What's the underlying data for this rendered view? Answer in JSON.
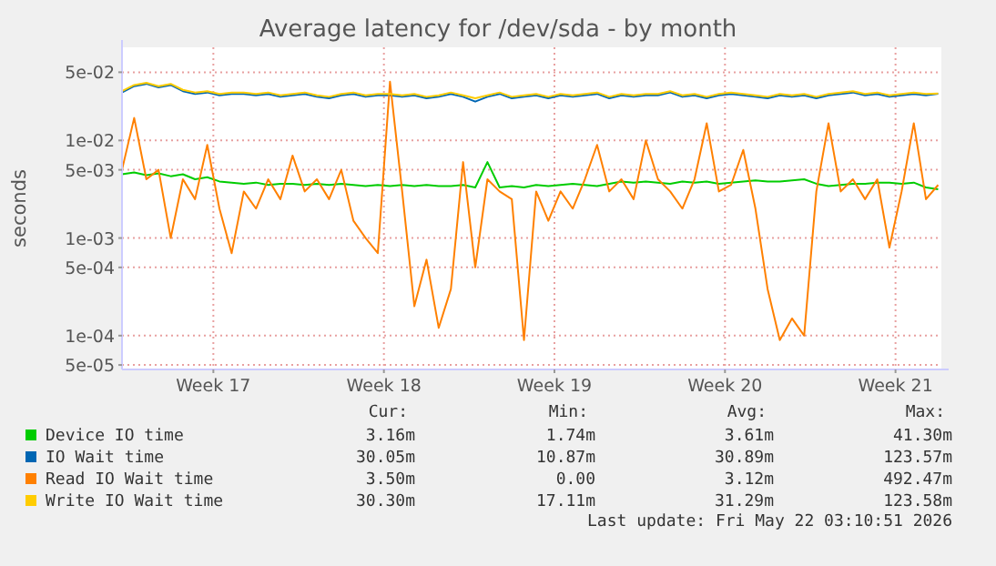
{
  "chart_data": {
    "type": "line",
    "title": "Average latency for /dev/sda - by month",
    "ylabel": "seconds",
    "log": "y",
    "grid": true,
    "legend": "bottom",
    "line_style": "solid",
    "xlim": [
      "2026-04-18T12:00",
      "2026-05-22T03:10"
    ],
    "xticks": [
      {
        "value": "2026-04-22T06:00",
        "label": "Week 17"
      },
      {
        "value": "2026-04-29T06:00",
        "label": "Week 18"
      },
      {
        "value": "2026-05-06T06:00",
        "label": "Week 19"
      },
      {
        "value": "2026-05-13T06:00",
        "label": "Week 20"
      },
      {
        "value": "2026-05-20T06:00",
        "label": "Week 21"
      }
    ],
    "ylim": [
      4.5e-05,
      0.09
    ],
    "yticks": [
      {
        "value": 5e-05,
        "label": "5e-05"
      },
      {
        "value": 0.0001,
        "label": "1e-04"
      },
      {
        "value": 0.0005,
        "label": "5e-04"
      },
      {
        "value": 0.001,
        "label": "1e-03"
      },
      {
        "value": 0.005,
        "label": "5e-03"
      },
      {
        "value": 0.01,
        "label": "1e-02"
      },
      {
        "value": 0.05,
        "label": "5e-02"
      }
    ],
    "x": [
      "2026-04-18T12:00",
      "2026-04-19T00:00",
      "2026-04-19T12:00",
      "2026-04-20T00:00",
      "2026-04-20T12:00",
      "2026-04-21T00:00",
      "2026-04-21T12:00",
      "2026-04-22T00:00",
      "2026-04-22T12:00",
      "2026-04-23T00:00",
      "2026-04-23T12:00",
      "2026-04-24T00:00",
      "2026-04-24T12:00",
      "2026-04-25T00:00",
      "2026-04-25T12:00",
      "2026-04-26T00:00",
      "2026-04-26T12:00",
      "2026-04-27T00:00",
      "2026-04-27T12:00",
      "2026-04-28T00:00",
      "2026-04-28T12:00",
      "2026-04-29T00:00",
      "2026-04-29T12:00",
      "2026-04-30T00:00",
      "2026-04-30T12:00",
      "2026-05-01T00:00",
      "2026-05-01T12:00",
      "2026-05-02T00:00",
      "2026-05-02T12:00",
      "2026-05-03T00:00",
      "2026-05-03T12:00",
      "2026-05-04T00:00",
      "2026-05-04T12:00",
      "2026-05-05T00:00",
      "2026-05-05T12:00",
      "2026-05-06T00:00",
      "2026-05-06T12:00",
      "2026-05-07T00:00",
      "2026-05-07T12:00",
      "2026-05-08T00:00",
      "2026-05-08T12:00",
      "2026-05-09T00:00",
      "2026-05-09T12:00",
      "2026-05-10T00:00",
      "2026-05-10T12:00",
      "2026-05-11T00:00",
      "2026-05-11T12:00",
      "2026-05-12T00:00",
      "2026-05-12T12:00",
      "2026-05-13T00:00",
      "2026-05-13T12:00",
      "2026-05-14T00:00",
      "2026-05-14T12:00",
      "2026-05-15T00:00",
      "2026-05-15T12:00",
      "2026-05-16T00:00",
      "2026-05-16T12:00",
      "2026-05-17T00:00",
      "2026-05-17T12:00",
      "2026-05-18T00:00",
      "2026-05-18T12:00",
      "2026-05-19T00:00",
      "2026-05-19T12:00",
      "2026-05-20T00:00",
      "2026-05-20T12:00",
      "2026-05-21T00:00",
      "2026-05-21T12:00",
      "2026-05-22T00:00"
    ],
    "series": [
      {
        "name": "Device IO time",
        "color": "#00cc00",
        "values": [
          0.0045,
          0.0047,
          0.0044,
          0.0046,
          0.0043,
          0.0045,
          0.004,
          0.0042,
          0.0038,
          0.0037,
          0.0036,
          0.0037,
          0.0035,
          0.0036,
          0.0036,
          0.0035,
          0.0036,
          0.0035,
          0.0036,
          0.0035,
          0.0034,
          0.0035,
          0.0034,
          0.0035,
          0.0034,
          0.0035,
          0.0034,
          0.0034,
          0.0035,
          0.0033,
          0.006,
          0.0033,
          0.0034,
          0.0033,
          0.0035,
          0.0034,
          0.0035,
          0.0036,
          0.0035,
          0.0034,
          0.0036,
          0.0038,
          0.0037,
          0.0038,
          0.0037,
          0.0036,
          0.0038,
          0.0037,
          0.0038,
          0.0036,
          0.0037,
          0.0038,
          0.0039,
          0.0038,
          0.0038,
          0.0039,
          0.004,
          0.0036,
          0.0034,
          0.0035,
          0.0036,
          0.0036,
          0.0037,
          0.0037,
          0.0036,
          0.0037,
          0.0033,
          0.00316
        ]
      },
      {
        "name": "IO Wait time",
        "color": "#0066b3",
        "values": [
          0.031,
          0.036,
          0.038,
          0.035,
          0.037,
          0.032,
          0.03,
          0.031,
          0.029,
          0.03,
          0.03,
          0.029,
          0.03,
          0.028,
          0.029,
          0.03,
          0.028,
          0.027,
          0.029,
          0.03,
          0.028,
          0.029,
          0.029,
          0.028,
          0.029,
          0.027,
          0.028,
          0.03,
          0.028,
          0.025,
          0.028,
          0.03,
          0.027,
          0.028,
          0.029,
          0.027,
          0.029,
          0.028,
          0.029,
          0.03,
          0.027,
          0.029,
          0.028,
          0.029,
          0.029,
          0.031,
          0.028,
          0.029,
          0.027,
          0.029,
          0.03,
          0.029,
          0.028,
          0.027,
          0.029,
          0.028,
          0.029,
          0.027,
          0.029,
          0.03,
          0.031,
          0.029,
          0.03,
          0.028,
          0.029,
          0.03,
          0.029,
          0.03005
        ]
      },
      {
        "name": "Read IO Wait time",
        "color": "#ff8000",
        "values": [
          0.005,
          0.017,
          0.004,
          0.005,
          0.001,
          0.004,
          0.0025,
          0.009,
          0.002,
          0.0007,
          0.003,
          0.002,
          0.004,
          0.0025,
          0.007,
          0.003,
          0.004,
          0.0025,
          0.005,
          0.0015,
          0.001,
          0.0007,
          0.04,
          0.003,
          0.0002,
          0.0006,
          0.00012,
          0.0003,
          0.006,
          0.0005,
          0.004,
          0.003,
          0.0025,
          9e-05,
          0.003,
          0.0015,
          0.003,
          0.002,
          0.004,
          0.009,
          0.003,
          0.004,
          0.0025,
          0.01,
          0.004,
          0.003,
          0.002,
          0.004,
          0.015,
          0.003,
          0.0035,
          0.008,
          0.002,
          0.0003,
          9e-05,
          0.00015,
          0.0001,
          0.003,
          0.015,
          0.003,
          0.004,
          0.0025,
          0.004,
          0.0008,
          0.003,
          0.015,
          0.0025,
          0.0035
        ]
      },
      {
        "name": "Write IO Wait time",
        "color": "#ffcc00",
        "values": [
          0.032,
          0.037,
          0.039,
          0.036,
          0.038,
          0.033,
          0.031,
          0.032,
          0.03,
          0.031,
          0.031,
          0.03,
          0.031,
          0.029,
          0.03,
          0.031,
          0.029,
          0.028,
          0.03,
          0.031,
          0.029,
          0.03,
          0.03,
          0.029,
          0.03,
          0.028,
          0.029,
          0.031,
          0.029,
          0.027,
          0.029,
          0.031,
          0.028,
          0.029,
          0.03,
          0.028,
          0.03,
          0.029,
          0.03,
          0.031,
          0.028,
          0.03,
          0.029,
          0.03,
          0.03,
          0.032,
          0.029,
          0.03,
          0.028,
          0.03,
          0.031,
          0.03,
          0.029,
          0.028,
          0.03,
          0.029,
          0.03,
          0.028,
          0.03,
          0.031,
          0.032,
          0.03,
          0.031,
          0.029,
          0.03,
          0.031,
          0.03,
          0.0303
        ]
      }
    ],
    "annotations": [
      "Cur:",
      "Min:",
      "Avg:",
      "Max:",
      "3.16m",
      "1.74m",
      "3.61m",
      "41.30m",
      "30.05m",
      "10.87m",
      "30.89m",
      "123.57m",
      "3.50m",
      "0.00",
      "3.12m",
      "492.47m",
      "30.30m",
      "17.11m",
      "31.29m",
      "123.58m",
      "Last update: Fri May 22 03:10:51 2026"
    ]
  }
}
